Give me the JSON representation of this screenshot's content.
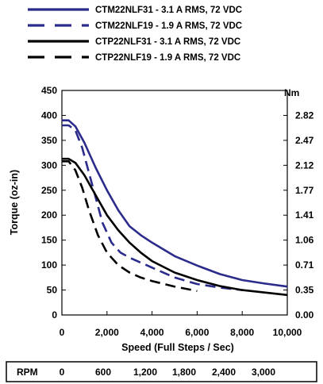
{
  "chart_data": {
    "type": "line",
    "xlabel": "Speed  (Full Steps / Sec)",
    "ylabel": "Torque (oz-in)",
    "y2label": "Nm",
    "xlim": [
      0,
      10000
    ],
    "ylim": [
      0,
      450
    ],
    "x_ticks": [
      0,
      2000,
      4000,
      6000,
      8000,
      10000
    ],
    "x_tick_labels": [
      "0",
      "2,000",
      "4,000",
      "6,000",
      "8,000",
      "10,000"
    ],
    "y_ticks": [
      0,
      50,
      100,
      150,
      200,
      250,
      300,
      350,
      400,
      450
    ],
    "y_tick_labels": [
      "0",
      "50",
      "100",
      "150",
      "200",
      "250",
      "300",
      "350",
      "400",
      "450"
    ],
    "y2_ticks": [
      0,
      50,
      100,
      150,
      200,
      250,
      300,
      350,
      400
    ],
    "y2_tick_labels": [
      "0.00",
      "0.35",
      "0.71",
      "1.06",
      "1.41",
      "1.77",
      "2.12",
      "2.47",
      "2.82"
    ],
    "grid": false,
    "legend_position": "top",
    "series": [
      {
        "name": "CTM22NLF31  - 3.1 A RMS,  72 VDC",
        "color": "#2b2b8c",
        "dash": "solid",
        "x": [
          0,
          300,
          600,
          1000,
          1500,
          2000,
          2500,
          3000,
          3500,
          4000,
          5000,
          6000,
          7000,
          8000,
          9000,
          10000
        ],
        "y": [
          390,
          390,
          378,
          345,
          295,
          250,
          210,
          178,
          160,
          145,
          118,
          99,
          82,
          70,
          63,
          57
        ]
      },
      {
        "name": "CTM22NLF19  - 1.9 A RMS,  72 VDC",
        "color": "#2b2b8c",
        "dash": "dashed",
        "x": [
          0,
          300,
          600,
          900,
          1200,
          1500,
          1800,
          2200,
          2600,
          3000,
          3500,
          4000,
          5000,
          6000,
          7000,
          8000
        ],
        "y": [
          380,
          380,
          370,
          335,
          285,
          235,
          185,
          145,
          125,
          115,
          105,
          95,
          75,
          62,
          55,
          50
        ]
      },
      {
        "name": "CTP22NLF31  - 3.1 A RMS,  72 VDC",
        "color": "#000000",
        "dash": "solid",
        "x": [
          0,
          300,
          600,
          1000,
          1500,
          2000,
          2500,
          3000,
          3500,
          4000,
          5000,
          6000,
          7000,
          8000,
          9000,
          10000
        ],
        "y": [
          313,
          313,
          305,
          280,
          240,
          200,
          170,
          145,
          125,
          108,
          85,
          70,
          58,
          50,
          45,
          40
        ]
      },
      {
        "name": "CTP22NLF19  - 1.9 A RMS,  72 VDC",
        "color": "#000000",
        "dash": "dashed",
        "x": [
          0,
          300,
          600,
          900,
          1200,
          1600,
          2000,
          2500,
          3000,
          3500,
          4000,
          5000,
          6000
        ],
        "y": [
          308,
          308,
          290,
          255,
          210,
          160,
          125,
          100,
          85,
          75,
          68,
          57,
          48
        ]
      }
    ],
    "rpm_row": {
      "label": "RPM",
      "values": [
        "0",
        "600",
        "1,200",
        "1,800",
        "2,400",
        "3,000"
      ]
    }
  }
}
